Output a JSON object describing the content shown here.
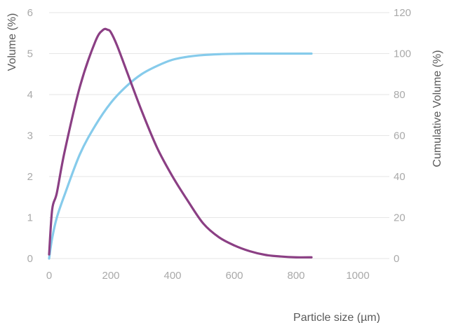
{
  "chart_data": {
    "type": "line",
    "xlabel": "Particle size (µm)",
    "ylabel": "Volume (%)",
    "y2label": "Cumulative Volume (%)",
    "xlim": [
      0,
      1000
    ],
    "ylim": [
      0,
      6
    ],
    "y2lim": [
      0,
      120
    ],
    "x_ticks": [
      0,
      200,
      400,
      600,
      800,
      1000
    ],
    "y_ticks": [
      0,
      1,
      2,
      3,
      4,
      5,
      6
    ],
    "y2_ticks": [
      0,
      20,
      40,
      60,
      80,
      100,
      120
    ],
    "grid": "horizontal",
    "series": [
      {
        "axis": "left",
        "color": "#8b3f84",
        "x": [
          0,
          10,
          25,
          50,
          100,
          150,
          175,
          190,
          200,
          220,
          250,
          300,
          350,
          400,
          450,
          500,
          550,
          600,
          650,
          700,
          750,
          800,
          850
        ],
        "values": [
          0.1,
          1.2,
          1.6,
          2.6,
          4.2,
          5.3,
          5.58,
          5.58,
          5.52,
          5.2,
          4.6,
          3.6,
          2.7,
          2.0,
          1.4,
          0.85,
          0.52,
          0.32,
          0.18,
          0.09,
          0.05,
          0.03,
          0.03
        ]
      },
      {
        "axis": "right",
        "color": "#86cbeb",
        "x": [
          0,
          10,
          25,
          50,
          100,
          150,
          200,
          250,
          300,
          350,
          400,
          450,
          500,
          550,
          600,
          650,
          700,
          750,
          800,
          850
        ],
        "values": [
          0,
          10,
          20,
          31,
          51,
          65,
          76,
          84,
          90,
          94,
          97,
          98.5,
          99.3,
          99.7,
          99.9,
          100,
          100,
          100,
          100,
          100
        ]
      }
    ]
  }
}
